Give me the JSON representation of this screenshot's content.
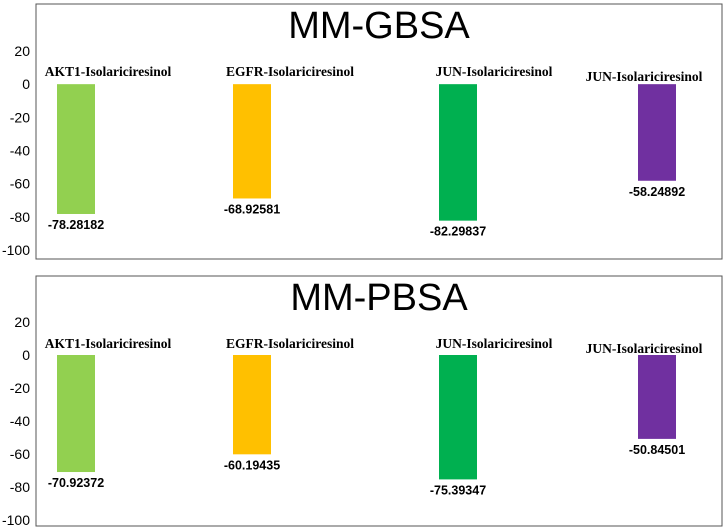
{
  "chart_data": [
    {
      "type": "bar",
      "title": "MM-GBSA",
      "categories": [
        "AKT1-Isolariciresinol",
        "EGFR-Isolariciresinol",
        "JUN-Isolariciresinol",
        "JUN-Isolariciresinol"
      ],
      "values": [
        -78.28182,
        -68.92581,
        -82.29837,
        -58.24892
      ],
      "value_labels": [
        "-78.28182",
        "-68.92581",
        "-82.29837",
        "-58.24892"
      ],
      "colors": [
        "#92d050",
        "#ffc000",
        "#00b050",
        "#7030a0"
      ],
      "ylim": [
        -100,
        20
      ],
      "yticks": [
        20,
        0,
        -20,
        -40,
        -60,
        -80,
        -100
      ],
      "ytick_labels": [
        "20",
        "0",
        "-20",
        "-40",
        "-60",
        "-80",
        "-100"
      ],
      "xlabel": "",
      "ylabel": "",
      "grid": false
    },
    {
      "type": "bar",
      "title": "MM-PBSA",
      "categories": [
        "AKT1-Isolariciresinol",
        "EGFR-Isolariciresinol",
        "JUN-Isolariciresinol",
        "JUN-Isolariciresinol"
      ],
      "values": [
        -70.92372,
        -60.19435,
        -75.39347,
        -50.84501
      ],
      "value_labels": [
        "-70.92372",
        "-60.19435",
        "-75.39347",
        "-50.84501"
      ],
      "colors": [
        "#92d050",
        "#ffc000",
        "#00b050",
        "#7030a0"
      ],
      "ylim": [
        -100,
        20
      ],
      "yticks": [
        20,
        0,
        -20,
        -40,
        -60,
        -80,
        -100
      ],
      "ytick_labels": [
        "20",
        "0",
        "-20",
        "-40",
        "-60",
        "-80",
        "-100"
      ],
      "xlabel": "",
      "ylabel": "",
      "grid": false
    }
  ]
}
